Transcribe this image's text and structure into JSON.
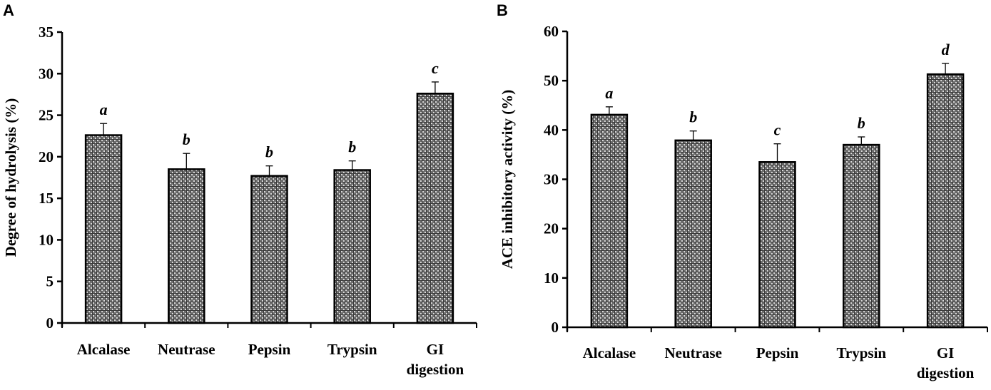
{
  "panels": [
    {
      "letter": "A",
      "ylabel": "Degree of hydrolysis (%)",
      "yticks": [
        "0",
        "5",
        "10",
        "15",
        "20",
        "25",
        "30",
        "35"
      ]
    },
    {
      "letter": "B",
      "ylabel": "ACE inhibitory activity (%)",
      "yticks": [
        "0",
        "10",
        "20",
        "30",
        "40",
        "50",
        "60"
      ]
    }
  ],
  "categories": [
    "Alcalase",
    "Neutrase",
    "Pepsin",
    "Trypsin",
    "GI digestion"
  ],
  "colors": {
    "bar_fill": "#6e6e6e",
    "bar_pattern_light": "#d9d9d9",
    "axis": "#000000"
  },
  "chart_data": [
    {
      "type": "bar",
      "title": "A",
      "xlabel": "",
      "ylabel": "Degree of hydrolysis (%)",
      "categories": [
        "Alcalase",
        "Neutrase",
        "Pepsin",
        "Trypsin",
        "GI digestion"
      ],
      "values": [
        22.6,
        18.5,
        17.7,
        18.4,
        27.6
      ],
      "error": [
        1.4,
        1.9,
        1.2,
        1.1,
        1.4
      ],
      "significance": [
        "a",
        "b",
        "b",
        "b",
        "c"
      ],
      "ylim": [
        0,
        35
      ],
      "yticks": [
        0,
        5,
        10,
        15,
        20,
        25,
        30,
        35
      ],
      "grid": false,
      "legend": null
    },
    {
      "type": "bar",
      "title": "B",
      "xlabel": "",
      "ylabel": "ACE inhibitory activity (%)",
      "categories": [
        "Alcalase",
        "Neutrase",
        "Pepsin",
        "Trypsin",
        "GI digestion"
      ],
      "values": [
        43.1,
        37.9,
        33.5,
        37.0,
        51.3
      ],
      "error": [
        1.6,
        1.9,
        3.7,
        1.6,
        2.2
      ],
      "significance": [
        "a",
        "b",
        "c",
        "b",
        "d"
      ],
      "ylim": [
        0,
        60
      ],
      "yticks": [
        0,
        10,
        20,
        30,
        40,
        50,
        60
      ],
      "grid": false,
      "legend": null
    }
  ]
}
